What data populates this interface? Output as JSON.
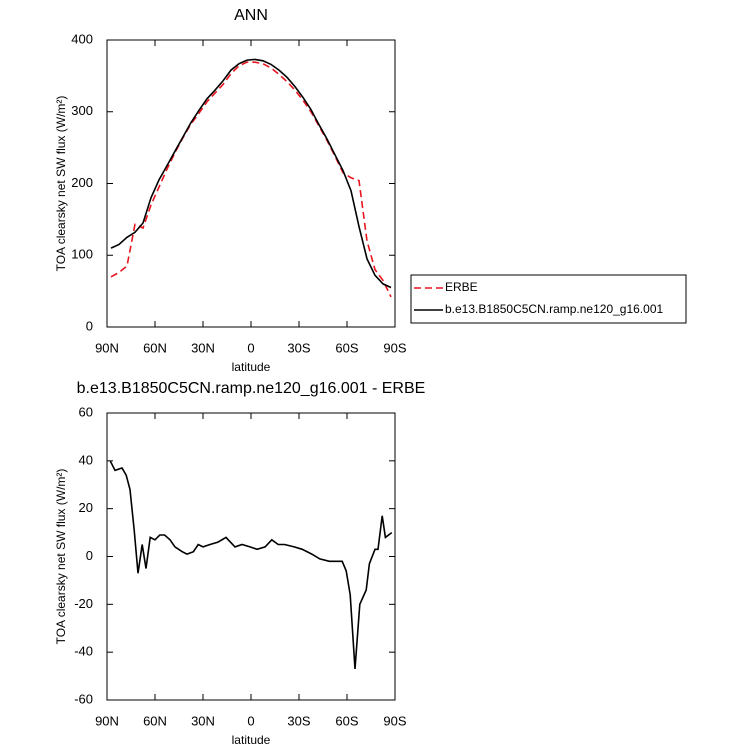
{
  "chart_data": [
    {
      "type": "line",
      "title": "ANN",
      "xlabel": "latitude",
      "ylabel": "TOA clearsky net SW flux (W/m²)",
      "x": [
        87.5,
        82.5,
        77.5,
        72.5,
        67.5,
        62.5,
        57.5,
        52.5,
        47.5,
        42.5,
        37.5,
        32.5,
        27.5,
        22.5,
        17.5,
        12.5,
        7.5,
        2.5,
        -2.5,
        -7.5,
        -12.5,
        -17.5,
        -22.5,
        -27.5,
        -32.5,
        -37.5,
        -42.5,
        -47.5,
        -52.5,
        -57.5,
        -62.5,
        -67.5,
        -72.5,
        -77.5,
        -82.5,
        -87.5
      ],
      "series": [
        {
          "name": "ERBE",
          "color": "#e8141e",
          "dash": true,
          "values": [
            70,
            76,
            85,
            143,
            138,
            170,
            195,
            220,
            243,
            264,
            283,
            298,
            314,
            326,
            338,
            353,
            364,
            369,
            369,
            367,
            361,
            352,
            342,
            330,
            316,
            300,
            280,
            260,
            238,
            215,
            208,
            204,
            120,
            80,
            65,
            42
          ]
        },
        {
          "name": "b.e13.B1850C5CN.ramp.ne120_g16.001",
          "color": "#000000",
          "dash": false,
          "values": [
            110,
            115,
            125,
            132,
            145,
            180,
            205,
            225,
            245,
            265,
            285,
            302,
            318,
            330,
            343,
            358,
            367,
            372,
            373,
            371,
            366,
            358,
            348,
            335,
            320,
            303,
            282,
            262,
            240,
            218,
            190,
            140,
            95,
            72,
            60,
            55
          ]
        }
      ],
      "xlim": [
        90,
        -90
      ],
      "xticks": [
        {
          "value": 90,
          "label": "90N"
        },
        {
          "value": 60,
          "label": "60N"
        },
        {
          "value": 30,
          "label": "30N"
        },
        0,
        {
          "value": -30,
          "label": "30S"
        },
        {
          "value": -60,
          "label": "60S"
        },
        {
          "value": -90,
          "label": "90S"
        }
      ],
      "ylim": [
        0,
        400
      ],
      "yticks": [
        0,
        100,
        200,
        300,
        400
      ],
      "legend": "outside-right"
    },
    {
      "type": "line",
      "title": "b.e13.B1850C5CN.ramp.ne120_g16.001 - ERBE",
      "xlabel": "latitude",
      "ylabel": "TOA clearsky net SW flux (W/m²)",
      "x": [
        88,
        85,
        80.6,
        78,
        75.6,
        73,
        70.6,
        68,
        65.6,
        63,
        60,
        57,
        54,
        50.6,
        47.5,
        43,
        40,
        36,
        33,
        30,
        25.6,
        20.6,
        15.6,
        10,
        5.6,
        0.6,
        -3.8,
        -8.8,
        -13,
        -17,
        -21,
        -27,
        -32,
        -38,
        -43,
        -49,
        -54,
        -57,
        -59.5,
        -62,
        -65,
        -68,
        -72,
        -74,
        -77.5,
        -79.4,
        -82,
        -84,
        -88
      ],
      "series": [
        {
          "color": "#000000",
          "dash": false,
          "values": [
            40,
            36,
            37,
            34,
            28,
            11,
            -7,
            5,
            -5,
            8,
            7,
            9,
            9,
            7,
            4,
            2,
            1,
            2,
            5,
            4,
            5,
            6,
            8,
            4,
            5,
            4,
            3,
            4,
            7,
            5,
            5,
            4,
            3,
            1,
            -1,
            -2,
            -2,
            -2,
            -6,
            -16,
            -47,
            -20,
            -14,
            -3,
            3,
            3,
            17,
            8,
            10
          ]
        }
      ],
      "xlim": [
        90,
        -90
      ],
      "xticks": [
        {
          "value": 90,
          "label": "90N"
        },
        {
          "value": 60,
          "label": "60N"
        },
        {
          "value": 30,
          "label": "30N"
        },
        0,
        {
          "value": -30,
          "label": "30S"
        },
        {
          "value": -60,
          "label": "60S"
        },
        {
          "value": -90,
          "label": "90S"
        }
      ],
      "ylim": [
        -60,
        60
      ],
      "yticks": [
        -60,
        -40,
        -20,
        0,
        20,
        40,
        60
      ]
    }
  ]
}
